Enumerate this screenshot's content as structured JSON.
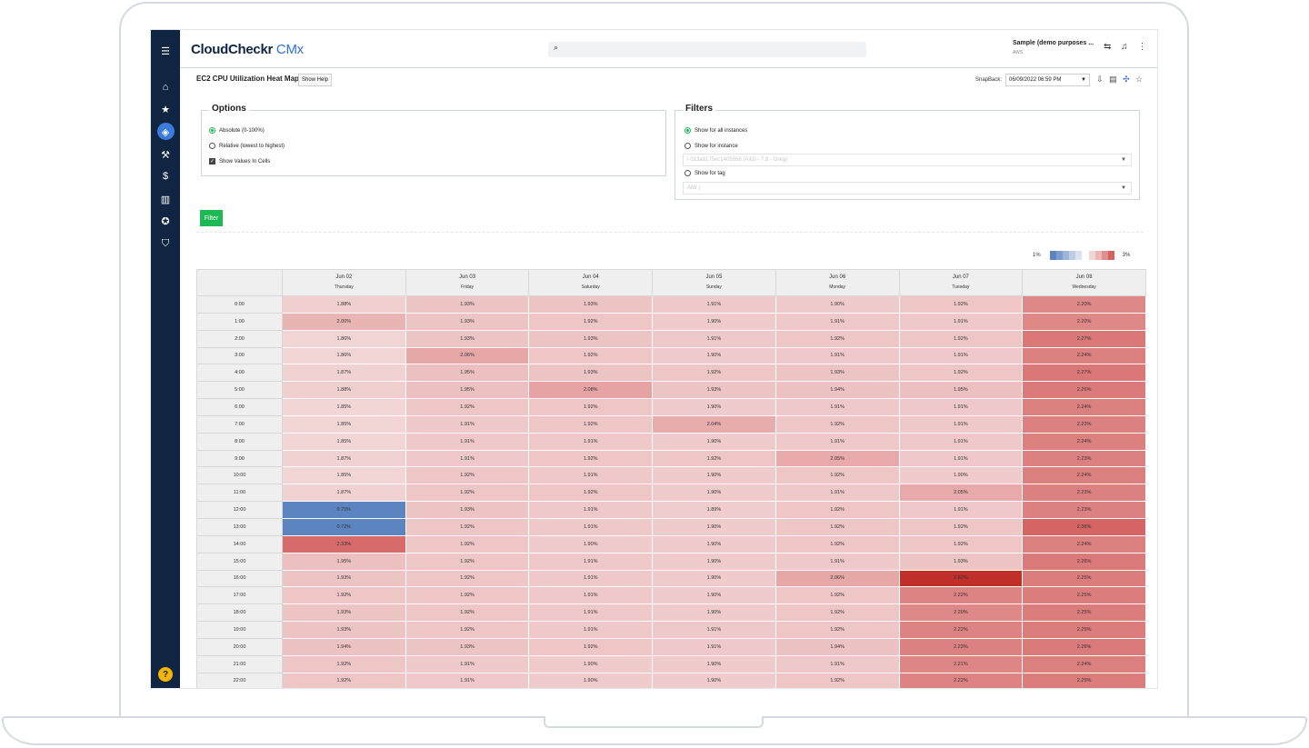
{
  "app": {
    "logo_main": "CloudCheckr",
    "logo_accent": " CMx",
    "account_name": "Sample (demo purposes ...",
    "account_sub": "AWS"
  },
  "sidebar_icons": [
    "menu-icon",
    "home-icon",
    "star-icon",
    "cube-icon",
    "tools-icon",
    "dollar-icon",
    "building-icon",
    "award-icon",
    "shield-icon"
  ],
  "page": {
    "title": "EC2 CPU Utilization Heat Map",
    "help_label": "Show Help",
    "snapback_label": "SnapBack:",
    "snapback_value": "06/09/2022 06:59 PM"
  },
  "options": {
    "title": "Options",
    "absolute": "Absolute (0-100%)",
    "relative": "Relative (lowest to highest)",
    "show_values": "Show Values In Cells"
  },
  "filters": {
    "title": "Filters",
    "all": "Show for all instances",
    "instance": "Show for instance",
    "instance_placeholder": "i-013a8175ec1405556 (AXD - 7.8 - Greg)",
    "tag": "Show for tag",
    "tag_placeholder": "AMI |"
  },
  "filter_button": "Filter",
  "scale": {
    "min": "1%",
    "max": "3%",
    "low_colors": [
      "#5b84c1",
      "#7b9ccd",
      "#9db5d9",
      "#bccde5",
      "#d9e2ef"
    ],
    "high_colors": [
      "#f1d6d6",
      "#eab6b6",
      "#e08e8e",
      "#d46262"
    ]
  },
  "heatmap": {
    "days": [
      {
        "date": "Jun 02",
        "weekday": "Thursday"
      },
      {
        "date": "Jun 03",
        "weekday": "Friday"
      },
      {
        "date": "Jun 04",
        "weekday": "Saturday"
      },
      {
        "date": "Jun 05",
        "weekday": "Sunday"
      },
      {
        "date": "Jun 06",
        "weekday": "Monday"
      },
      {
        "date": "Jun 07",
        "weekday": "Tuesday"
      },
      {
        "date": "Jun 08",
        "weekday": "Wednesday"
      }
    ],
    "hours": [
      "0:00",
      "1:00",
      "2:00",
      "3:00",
      "4:00",
      "5:00",
      "6:00",
      "7:00",
      "8:00",
      "9:00",
      "10:00",
      "11:00",
      "12:00",
      "13:00",
      "14:00",
      "15:00",
      "16:00",
      "17:00",
      "18:00",
      "19:00",
      "20:00",
      "21:00",
      "22:00"
    ],
    "values": [
      [
        1.88,
        1.93,
        1.93,
        1.91,
        1.9,
        1.92,
        2.2
      ],
      [
        2.0,
        1.93,
        1.92,
        1.9,
        1.91,
        1.91,
        2.2
      ],
      [
        1.86,
        1.93,
        1.93,
        1.91,
        1.92,
        1.92,
        2.27
      ],
      [
        1.86,
        2.06,
        1.92,
        1.9,
        1.91,
        1.91,
        2.24
      ],
      [
        1.87,
        1.95,
        1.93,
        1.92,
        1.93,
        1.92,
        2.27
      ],
      [
        1.88,
        1.95,
        2.08,
        1.93,
        1.94,
        1.95,
        2.26
      ],
      [
        1.85,
        1.92,
        1.92,
        1.9,
        1.91,
        1.91,
        2.24
      ],
      [
        1.85,
        1.91,
        1.92,
        2.04,
        1.92,
        1.91,
        2.23
      ],
      [
        1.85,
        1.91,
        1.91,
        1.9,
        1.91,
        1.91,
        2.24
      ],
      [
        1.87,
        1.91,
        1.92,
        1.92,
        2.05,
        1.91,
        2.23
      ],
      [
        1.85,
        1.92,
        1.91,
        1.9,
        1.92,
        1.9,
        2.24
      ],
      [
        1.87,
        1.92,
        1.92,
        1.9,
        1.91,
        2.05,
        2.23
      ],
      [
        0.7,
        1.93,
        1.91,
        1.89,
        1.92,
        1.91,
        2.23
      ],
      [
        0.72,
        1.92,
        1.91,
        1.9,
        1.92,
        1.92,
        2.36
      ],
      [
        2.33,
        1.92,
        1.9,
        1.9,
        1.92,
        1.92,
        2.24
      ],
      [
        1.95,
        1.92,
        1.91,
        1.9,
        1.91,
        1.93,
        2.26
      ],
      [
        1.93,
        1.92,
        1.91,
        1.9,
        2.06,
        2.82,
        2.25
      ],
      [
        1.92,
        1.92,
        1.91,
        1.9,
        1.92,
        2.22,
        2.25
      ],
      [
        1.93,
        1.92,
        1.91,
        1.9,
        1.92,
        2.2,
        2.25
      ],
      [
        1.93,
        1.92,
        1.91,
        1.91,
        1.92,
        2.22,
        2.25
      ],
      [
        1.94,
        1.93,
        1.92,
        1.91,
        1.94,
        2.23,
        2.26
      ],
      [
        1.92,
        1.91,
        1.9,
        1.9,
        1.91,
        2.21,
        2.24
      ],
      [
        1.92,
        1.91,
        1.9,
        1.9,
        1.92,
        2.22,
        2.25
      ]
    ]
  }
}
